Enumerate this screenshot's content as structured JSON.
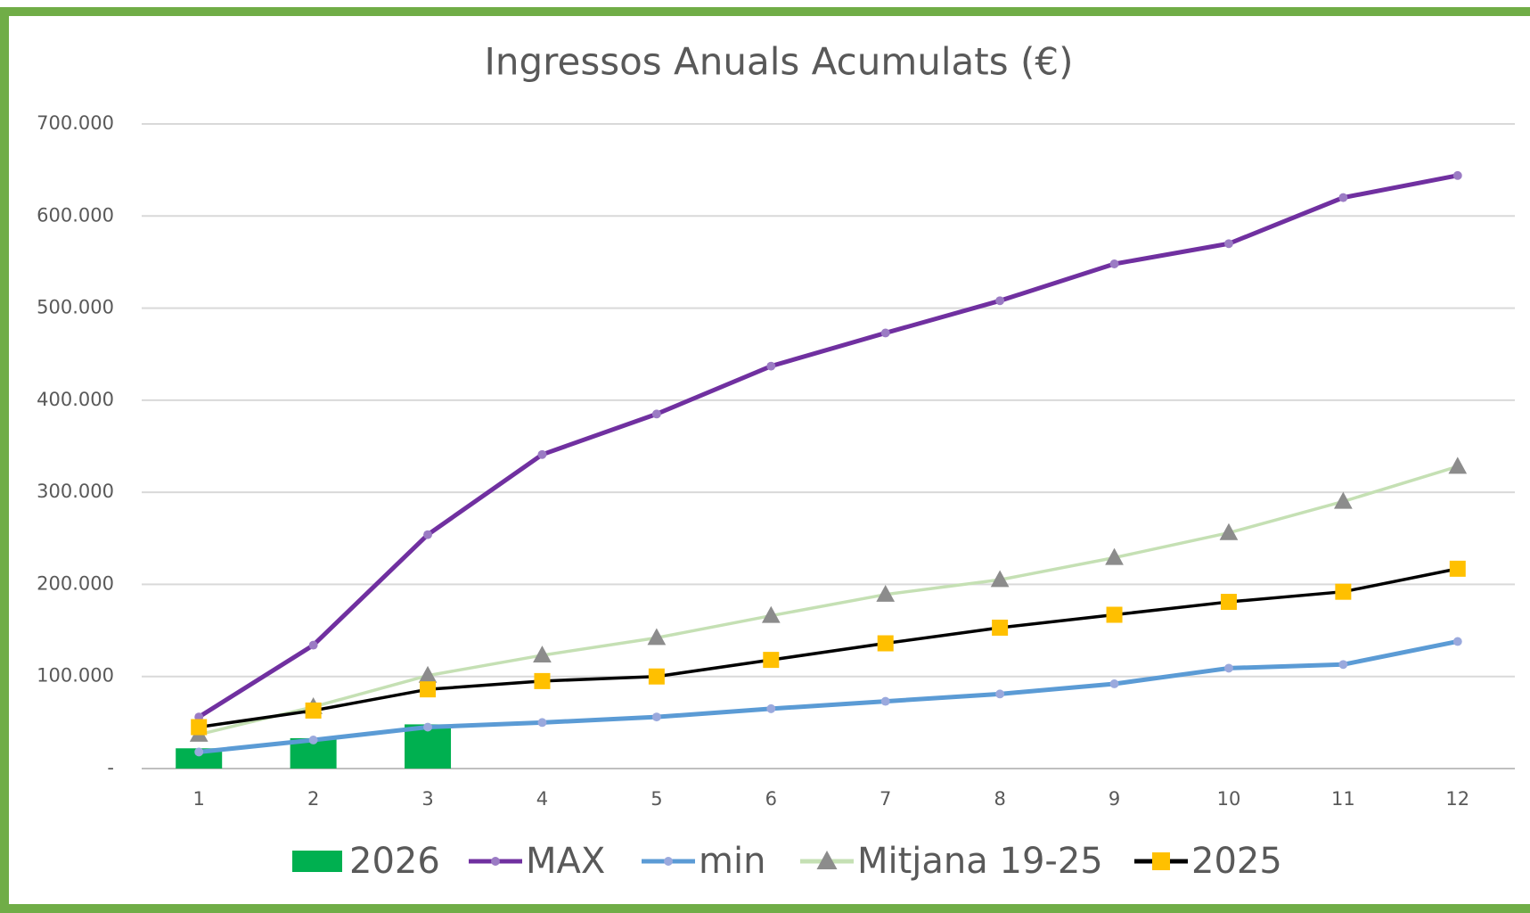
{
  "chart_data": {
    "type": "combo",
    "title": "Ingressos Anuals Acumulats (€)",
    "categories": [
      1,
      2,
      3,
      4,
      5,
      6,
      7,
      8,
      9,
      10,
      11,
      12
    ],
    "ylim": [
      0,
      700000
    ],
    "yticks": [
      {
        "value": 0,
        "label": "-"
      },
      {
        "value": 100000,
        "label": "100.000"
      },
      {
        "value": 200000,
        "label": "200.000"
      },
      {
        "value": 300000,
        "label": "300.000"
      },
      {
        "value": 400000,
        "label": "400.000"
      },
      {
        "value": 500000,
        "label": "500.000"
      },
      {
        "value": 600000,
        "label": "600.000"
      },
      {
        "value": 700000,
        "label": "700.000"
      }
    ],
    "grid": true,
    "legend": "bottom",
    "series": [
      {
        "name": "2026",
        "type": "bar",
        "color": "#00b050",
        "values": [
          22000,
          33000,
          48000,
          null,
          null,
          null,
          null,
          null,
          null,
          null,
          null,
          null
        ]
      },
      {
        "name": "MAX",
        "type": "line",
        "color": "#7030a0",
        "marker": "circle",
        "marker_color": "#9b7bc4",
        "values": [
          56000,
          134000,
          254000,
          341000,
          385000,
          437000,
          473000,
          508000,
          548000,
          570000,
          620000,
          644000
        ]
      },
      {
        "name": "min",
        "type": "line",
        "color": "#5b9bd5",
        "marker": "circle",
        "marker_color": "#9aa9dd",
        "values": [
          18000,
          31000,
          45000,
          50000,
          56000,
          65000,
          73000,
          81000,
          92000,
          109000,
          113000,
          138000
        ]
      },
      {
        "name": "Mitjana 19-25",
        "type": "line",
        "color": "#c5e0b4",
        "marker": "triangle",
        "marker_color": "#8c8c8c",
        "values": [
          37000,
          67000,
          101000,
          123000,
          142000,
          166000,
          189000,
          205000,
          229000,
          256000,
          290000,
          328000
        ]
      },
      {
        "name": "2025",
        "type": "line",
        "color": "#000000",
        "marker": "square",
        "marker_color": "#ffc000",
        "values": [
          45000,
          63000,
          86000,
          95000,
          100000,
          118000,
          136000,
          153000,
          167000,
          181000,
          192000,
          217000
        ]
      }
    ]
  }
}
